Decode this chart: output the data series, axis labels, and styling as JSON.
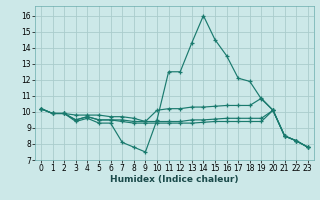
{
  "xlabel": "Humidex (Indice chaleur)",
  "background_color": "#cce8e8",
  "grid_color": "#aacccc",
  "line_color": "#1a7a6e",
  "xlim": [
    -0.5,
    23.5
  ],
  "ylim": [
    7,
    16.6
  ],
  "yticks": [
    7,
    8,
    9,
    10,
    11,
    12,
    13,
    14,
    15,
    16
  ],
  "xticks": [
    0,
    1,
    2,
    3,
    4,
    5,
    6,
    7,
    8,
    9,
    10,
    11,
    12,
    13,
    14,
    15,
    16,
    17,
    18,
    19,
    20,
    21,
    22,
    23
  ],
  "series": [
    [
      10.2,
      9.9,
      9.9,
      9.4,
      9.6,
      9.3,
      9.3,
      8.1,
      7.8,
      7.5,
      9.5,
      12.5,
      12.5,
      14.3,
      16.0,
      14.5,
      13.5,
      12.1,
      11.9,
      10.8,
      10.1,
      8.5,
      8.2,
      7.8
    ],
    [
      10.2,
      9.9,
      9.9,
      9.8,
      9.8,
      9.8,
      9.7,
      9.7,
      9.6,
      9.4,
      10.1,
      10.2,
      10.2,
      10.3,
      10.3,
      10.35,
      10.4,
      10.4,
      10.4,
      10.85,
      10.1,
      8.5,
      8.2,
      7.8
    ],
    [
      10.2,
      9.9,
      9.9,
      9.5,
      9.7,
      9.5,
      9.5,
      9.5,
      9.4,
      9.4,
      9.4,
      9.4,
      9.4,
      9.5,
      9.5,
      9.55,
      9.6,
      9.6,
      9.6,
      9.6,
      10.1,
      8.5,
      8.2,
      7.8
    ],
    [
      10.2,
      9.9,
      9.9,
      9.5,
      9.7,
      9.5,
      9.5,
      9.4,
      9.3,
      9.3,
      9.3,
      9.3,
      9.3,
      9.3,
      9.35,
      9.4,
      9.4,
      9.4,
      9.4,
      9.4,
      10.1,
      8.5,
      8.2,
      7.8
    ]
  ]
}
